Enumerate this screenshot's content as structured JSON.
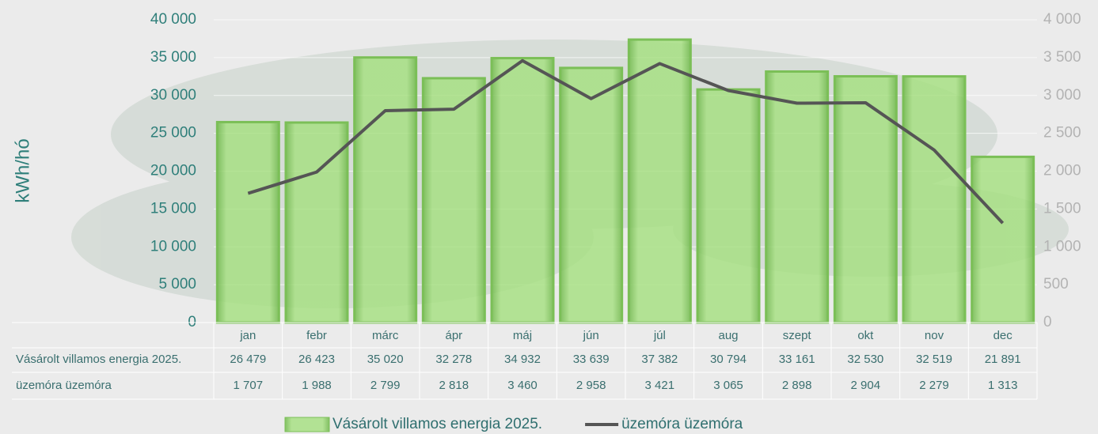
{
  "chart_data": {
    "type": "bar",
    "y_label": "kWh/hó",
    "categories": [
      "jan",
      "febr",
      "márc",
      "ápr",
      "máj",
      "jún",
      "júl",
      "aug",
      "szept",
      "okt",
      "nov",
      "dec"
    ],
    "series": [
      {
        "name": "Vásárolt villamos energia 2025.",
        "type": "bar",
        "color": "#8fd46a",
        "values": [
          26479,
          26423,
          35020,
          32278,
          34932,
          33639,
          37382,
          30794,
          33161,
          32530,
          32519,
          21891
        ],
        "value_labels": [
          "26 479",
          "26 423",
          "35 020",
          "32 278",
          "34 932",
          "33 639",
          "37 382",
          "30 794",
          "33 161",
          "32 530",
          "32 519",
          "21 891"
        ]
      },
      {
        "name": "üzemóra üzemóra",
        "type": "line",
        "axis": "y2",
        "color": "#555555",
        "values": [
          1707,
          1988,
          2799,
          2818,
          3460,
          2958,
          3421,
          3065,
          2898,
          2904,
          2279,
          1313
        ],
        "value_labels": [
          "1 707",
          "1 988",
          "2 799",
          "2 818",
          "3 460",
          "2 958",
          "3 421",
          "3 065",
          "2 898",
          "2 904",
          "2 279",
          "1 313"
        ]
      }
    ],
    "ylim": [
      0,
      40000
    ],
    "yticks": [
      0,
      {
        "value": 5000,
        "label": "5 000"
      },
      {
        "value": 10000,
        "label": "10 000"
      },
      {
        "value": 15000,
        "label": "15 000"
      },
      {
        "value": 20000,
        "label": "20 000"
      },
      {
        "value": 25000,
        "label": "25 000"
      },
      {
        "value": 30000,
        "label": "30 000"
      },
      {
        "value": 35000,
        "label": "35 000"
      },
      {
        "value": 40000,
        "label": "40 000"
      }
    ],
    "y2lim": [
      0,
      4000
    ],
    "y2ticks": [
      0,
      500,
      {
        "value": 1000,
        "label": "1 000"
      },
      {
        "value": 1500,
        "label": "1 500"
      },
      {
        "value": 2000,
        "label": "2 000"
      },
      {
        "value": 2500,
        "label": "2 500"
      },
      {
        "value": 3000,
        "label": "3 000"
      },
      {
        "value": 3500,
        "label": "3 500"
      },
      {
        "value": 4000,
        "label": "4 000"
      }
    ],
    "grid": true,
    "legend": "bottom"
  }
}
